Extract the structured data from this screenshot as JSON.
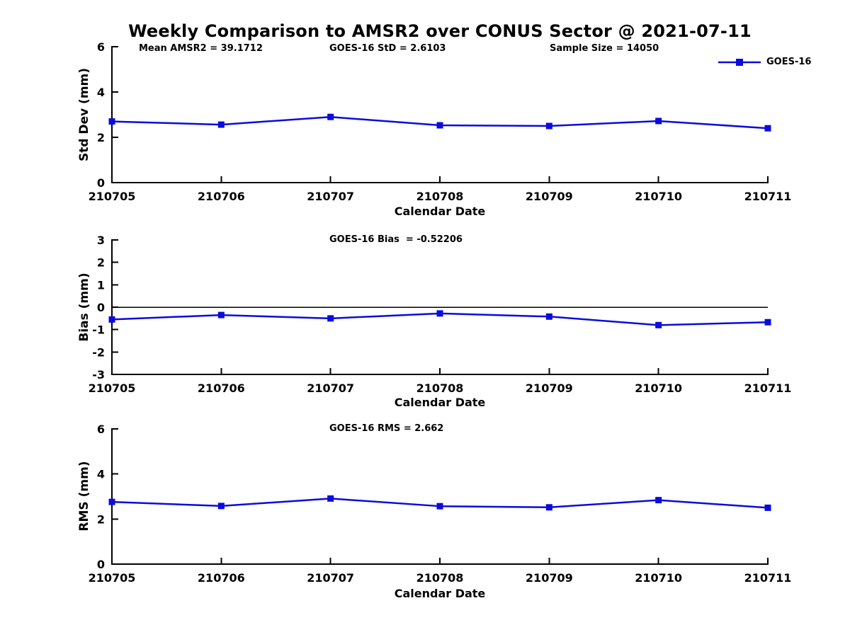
{
  "title": "Weekly Comparison to AMSR2 over CONUS Sector @ 2021-07-11",
  "legend": {
    "label": "GOES-16"
  },
  "colors": {
    "line": "#0b0bdd",
    "axis": "#000000",
    "text": "#000000"
  },
  "chart_data": [
    {
      "type": "line",
      "annotations": [
        "Mean AMSR2 = 39.1712",
        "GOES-16 StD = 2.6103",
        "Sample Size = 14050"
      ],
      "categories": [
        "210705",
        "210706",
        "210707",
        "210708",
        "210709",
        "210710",
        "210711"
      ],
      "series": [
        {
          "name": "GOES-16",
          "values": [
            2.7,
            2.56,
            2.9,
            2.53,
            2.5,
            2.72,
            2.4
          ]
        }
      ],
      "xlabel": "Calendar Date",
      "ylabel": "Std Dev (mm)",
      "ylim": [
        0,
        6
      ],
      "yticks": [
        0,
        2,
        4,
        6
      ],
      "zero_line": false,
      "grid": false,
      "legend_position": "top-right"
    },
    {
      "type": "line",
      "annotations": [
        "GOES-16 Bias  = -0.52206"
      ],
      "categories": [
        "210705",
        "210706",
        "210707",
        "210708",
        "210709",
        "210710",
        "210711"
      ],
      "series": [
        {
          "name": "GOES-16",
          "values": [
            -0.55,
            -0.35,
            -0.5,
            -0.28,
            -0.42,
            -0.8,
            -0.67
          ]
        }
      ],
      "xlabel": "Calendar Date",
      "ylabel": "Bias (mm)",
      "ylim": [
        -3,
        3
      ],
      "yticks": [
        -3,
        -2,
        -1,
        0,
        1,
        2,
        3
      ],
      "zero_line": true,
      "grid": false,
      "legend_position": "none"
    },
    {
      "type": "line",
      "annotations": [
        "GOES-16 RMS = 2.662"
      ],
      "categories": [
        "210705",
        "210706",
        "210707",
        "210708",
        "210709",
        "210710",
        "210711"
      ],
      "series": [
        {
          "name": "GOES-16",
          "values": [
            2.76,
            2.58,
            2.91,
            2.57,
            2.52,
            2.84,
            2.5
          ]
        }
      ],
      "xlabel": "Calendar Date",
      "ylabel": "RMS (mm)",
      "ylim": [
        0,
        6
      ],
      "yticks": [
        0,
        2,
        4,
        6
      ],
      "zero_line": false,
      "grid": false,
      "legend_position": "none"
    }
  ]
}
